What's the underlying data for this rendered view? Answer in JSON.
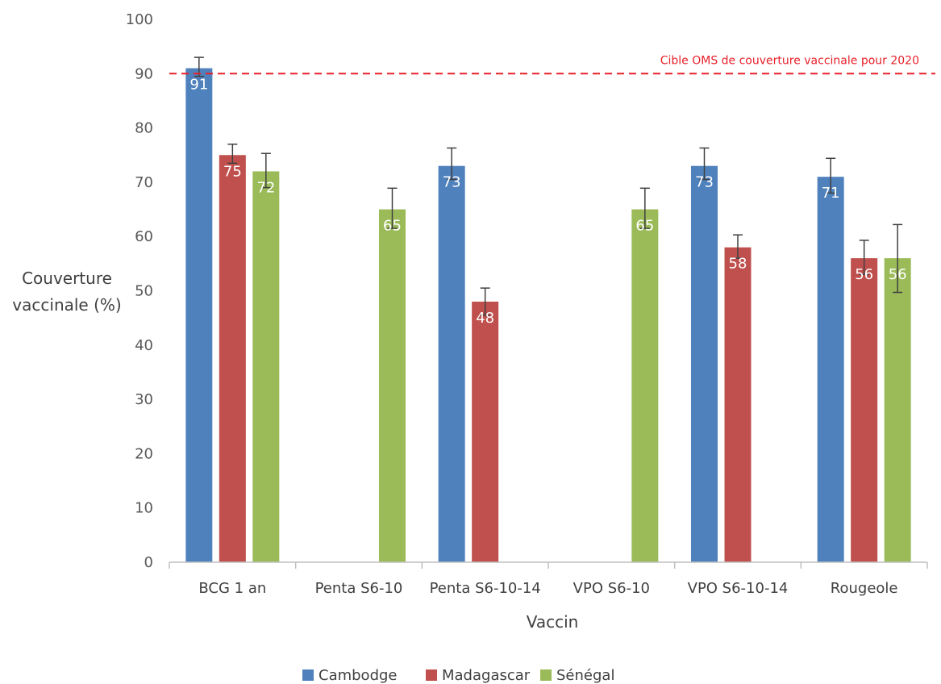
{
  "chart_data": {
    "type": "bar",
    "xlabel": "Vaccin",
    "ylabel_lines": [
      "Couverture",
      "vaccinale (%)"
    ],
    "ylim": [
      0,
      100
    ],
    "yticks": [
      0,
      10,
      20,
      30,
      40,
      50,
      60,
      70,
      80,
      90,
      100
    ],
    "categories": [
      "BCG 1 an",
      "Penta S6-10",
      "Penta S6-10-14",
      "VPO S6-10",
      "VPO S6-10-14",
      "Rougeole"
    ],
    "series": [
      {
        "name": "Cambodge",
        "color": "#4f81bd",
        "values": [
          91,
          null,
          73,
          null,
          73,
          71
        ],
        "error_low": [
          1.5,
          null,
          2.5,
          null,
          2.5,
          3
        ],
        "error_high": [
          2,
          null,
          3.3,
          null,
          3.3,
          3.4
        ]
      },
      {
        "name": "Madagascar",
        "color": "#c0504d",
        "values": [
          75,
          null,
          48,
          null,
          58,
          56
        ],
        "error_low": [
          1.5,
          null,
          2.5,
          null,
          2,
          3
        ],
        "error_high": [
          2,
          null,
          2.5,
          null,
          2.3,
          3.3
        ]
      },
      {
        "name": "Sénégal",
        "color": "#9bbb59",
        "values": [
          72,
          65,
          null,
          65,
          null,
          56
        ],
        "error_low": [
          3,
          3.5,
          null,
          3.5,
          null,
          6.3
        ],
        "error_high": [
          3.3,
          3.9,
          null,
          3.9,
          null,
          6.2
        ]
      }
    ],
    "reference_line": {
      "value": 90,
      "label": "Cible OMS de couverture vaccinale pour 2020",
      "color": "#e8202a"
    },
    "legend": {
      "position": "bottom"
    },
    "grid": false
  }
}
